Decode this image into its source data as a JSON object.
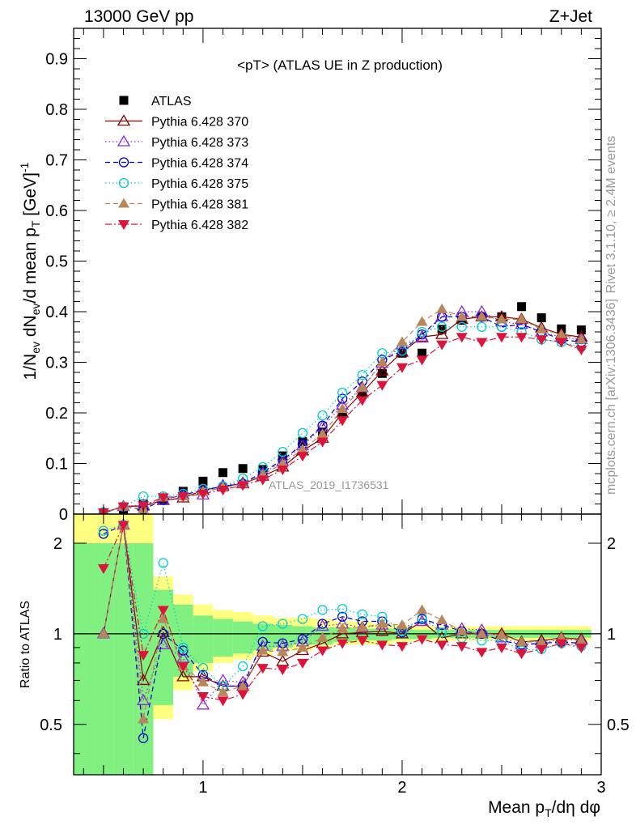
{
  "header": {
    "left": "13000 GeV pp",
    "right": "Z+Jet"
  },
  "side_text": {
    "top": "Rivet 3.1.10, ≥ 2.4M events",
    "bottom": "mcplots.cern.ch [arXiv:1306.3436]"
  },
  "watermark": "ATLAS_2019_I1736531",
  "colors": {
    "ATLAS": "#000000",
    "370": "#8b0000",
    "373": "#8a2be2",
    "374": "#0000cd",
    "375": "#00ced1",
    "381": "#b8865a",
    "382": "#dc143c",
    "band_yellow": "#ffff80",
    "band_green": "#80f080"
  },
  "chart_data": [
    {
      "type": "scatter",
      "title": "<pT> (ATLAS UE in Z production)",
      "ylabel": "1/N_ev dN_ev/d mean p_T [GeV]^-1",
      "xlabel": "",
      "xlim": [
        0.35,
        3.0
      ],
      "ylim": [
        0,
        0.96
      ],
      "yticks": [
        "0",
        "0.1",
        "0.2",
        "0.3",
        "0.4",
        "0.5",
        "0.6",
        "0.7",
        "0.8",
        "0.9"
      ],
      "x": [
        0.5,
        0.6,
        0.7,
        0.8,
        0.9,
        1.0,
        1.1,
        1.2,
        1.3,
        1.4,
        1.5,
        1.6,
        1.7,
        1.8,
        1.9,
        2.0,
        2.1,
        2.2,
        2.3,
        2.4,
        2.5,
        2.6,
        2.7,
        2.8,
        2.9
      ],
      "legend": [
        {
          "label": "ATLAS",
          "key": "ATLAS",
          "marker": "square-filled",
          "line": "none"
        },
        {
          "label": "Pythia 6.428 370",
          "key": "370",
          "marker": "triangle-open",
          "line": "solid"
        },
        {
          "label": "Pythia 6.428 373",
          "key": "373",
          "marker": "triangle-open",
          "line": "dotted"
        },
        {
          "label": "Pythia 6.428 374",
          "key": "374",
          "marker": "circle-open",
          "line": "dashed"
        },
        {
          "label": "Pythia 6.428 375",
          "key": "375",
          "marker": "circle-open",
          "line": "dotted"
        },
        {
          "label": "Pythia 6.428 381",
          "key": "381",
          "marker": "triangle-filled",
          "line": "dashed"
        },
        {
          "label": "Pythia 6.428 382",
          "key": "382",
          "marker": "triangle-down-filled",
          "line": "dashdot"
        }
      ],
      "series": [
        {
          "name": "ATLAS",
          "key": "ATLAS",
          "values": [
            0.002,
            0.007,
            0.02,
            0.03,
            0.045,
            0.065,
            0.082,
            0.09,
            0.088,
            0.115,
            0.143,
            0.162,
            0.2,
            0.237,
            0.278,
            0.318,
            0.318,
            0.365,
            0.383,
            0.39,
            0.39,
            0.41,
            0.388,
            0.366,
            0.364
          ]
        },
        {
          "name": "Pythia 6.428 370",
          "key": "370",
          "values": [
            0.002,
            0.015,
            0.016,
            0.027,
            0.032,
            0.047,
            0.055,
            0.06,
            0.075,
            0.093,
            0.125,
            0.15,
            0.2,
            0.24,
            0.283,
            0.32,
            0.35,
            0.355,
            0.385,
            0.39,
            0.39,
            0.385,
            0.368,
            0.355,
            0.35
          ]
        },
        {
          "name": "Pythia 6.428 373",
          "key": "373",
          "values": [
            0.002,
            0.015,
            0.018,
            0.028,
            0.038,
            0.038,
            0.057,
            0.062,
            0.08,
            0.104,
            0.135,
            0.172,
            0.215,
            0.25,
            0.298,
            0.335,
            0.348,
            0.39,
            0.4,
            0.4,
            0.38,
            0.375,
            0.36,
            0.35,
            0.345
          ]
        },
        {
          "name": "Pythia 6.428 374",
          "key": "374",
          "values": [
            0.002,
            0.015,
            0.009,
            0.028,
            0.038,
            0.047,
            0.055,
            0.06,
            0.083,
            0.107,
            0.138,
            0.175,
            0.228,
            0.262,
            0.305,
            0.322,
            0.355,
            0.39,
            0.39,
            0.39,
            0.37,
            0.375,
            0.36,
            0.345,
            0.34
          ]
        },
        {
          "name": "Pythia 6.428 375",
          "key": "375",
          "values": [
            0.004,
            0.015,
            0.035,
            0.035,
            0.04,
            0.05,
            0.055,
            0.07,
            0.093,
            0.123,
            0.16,
            0.195,
            0.24,
            0.275,
            0.318,
            0.323,
            0.36,
            0.37,
            0.37,
            0.37,
            0.37,
            0.36,
            0.345,
            0.34,
            0.33
          ]
        },
        {
          "name": "Pythia 6.428 381",
          "key": "381",
          "values": [
            0.002,
            0.015,
            0.01,
            0.033,
            0.035,
            0.045,
            0.052,
            0.06,
            0.078,
            0.1,
            0.128,
            0.158,
            0.208,
            0.25,
            0.3,
            0.34,
            0.38,
            0.405,
            0.39,
            0.39,
            0.385,
            0.385,
            0.365,
            0.355,
            0.345
          ]
        },
        {
          "name": "Pythia 6.428 382",
          "key": "382",
          "values": [
            0.0035,
            0.015,
            0.017,
            0.033,
            0.035,
            0.04,
            0.048,
            0.057,
            0.068,
            0.088,
            0.115,
            0.143,
            0.185,
            0.225,
            0.255,
            0.29,
            0.305,
            0.335,
            0.35,
            0.34,
            0.35,
            0.35,
            0.345,
            0.34,
            0.325
          ]
        }
      ]
    },
    {
      "type": "scatter",
      "ylabel": "Ratio to ATLAS",
      "xlabel": "Mean p_T/dη dφ",
      "xlim": [
        0.35,
        3.0
      ],
      "ylim": [
        0.34,
        2.5
      ],
      "scale": "log",
      "yticks": [
        "0.5",
        "1",
        "2"
      ],
      "xticks": [
        "1",
        "2",
        "3"
      ],
      "x": [
        0.5,
        0.6,
        0.7,
        0.8,
        0.9,
        1.0,
        1.1,
        1.2,
        1.3,
        1.4,
        1.5,
        1.6,
        1.7,
        1.8,
        1.9,
        2.0,
        2.1,
        2.2,
        2.3,
        2.4,
        2.5,
        2.6,
        2.7,
        2.8,
        2.9
      ],
      "band_edges": [
        0.35,
        0.45,
        0.55,
        0.65,
        0.75,
        0.85,
        0.95,
        1.05,
        1.15,
        1.25,
        1.35,
        1.45,
        1.55,
        1.65,
        1.75,
        1.85,
        1.95,
        2.05,
        2.15,
        2.25,
        2.35,
        2.45,
        2.55,
        2.65,
        2.75,
        2.85,
        2.95
      ],
      "band_yellow": [
        [
          0.34,
          2.5
        ],
        [
          0.34,
          2.5
        ],
        [
          0.34,
          2.5
        ],
        [
          0.34,
          2.5
        ],
        [
          0.52,
          1.55
        ],
        [
          0.65,
          1.35
        ],
        [
          0.75,
          1.25
        ],
        [
          0.8,
          1.2
        ],
        [
          0.82,
          1.18
        ],
        [
          0.85,
          1.15
        ],
        [
          0.88,
          1.13
        ],
        [
          0.88,
          1.13
        ],
        [
          0.9,
          1.12
        ],
        [
          0.92,
          1.1
        ],
        [
          0.92,
          1.1
        ],
        [
          0.92,
          1.08
        ],
        [
          0.94,
          1.07
        ],
        [
          0.95,
          1.06
        ],
        [
          0.95,
          1.06
        ],
        [
          0.95,
          1.06
        ],
        [
          0.95,
          1.06
        ],
        [
          0.95,
          1.06
        ],
        [
          0.95,
          1.06
        ],
        [
          0.95,
          1.06
        ],
        [
          0.95,
          1.06
        ],
        [
          0.95,
          1.06
        ]
      ],
      "band_green": [
        [
          0.34,
          2.0
        ],
        [
          0.34,
          2.0
        ],
        [
          0.34,
          2.0
        ],
        [
          0.34,
          2.0
        ],
        [
          0.58,
          1.4
        ],
        [
          0.72,
          1.25
        ],
        [
          0.8,
          1.15
        ],
        [
          0.84,
          1.12
        ],
        [
          0.86,
          1.1
        ],
        [
          0.88,
          1.08
        ],
        [
          0.9,
          1.07
        ],
        [
          0.92,
          1.06
        ],
        [
          0.92,
          1.05
        ],
        [
          0.94,
          1.05
        ],
        [
          0.95,
          1.04
        ],
        [
          0.95,
          1.04
        ],
        [
          0.96,
          1.04
        ],
        [
          0.96,
          1.03
        ],
        [
          0.97,
          1.03
        ],
        [
          0.97,
          1.03
        ],
        [
          0.97,
          1.03
        ],
        [
          0.97,
          1.03
        ],
        [
          0.97,
          1.03
        ],
        [
          0.97,
          1.03
        ],
        [
          0.97,
          1.03
        ],
        [
          0.97,
          1.03
        ]
      ],
      "series": [
        {
          "key": "370",
          "values": [
            1.0,
            2.3,
            0.7,
            1.01,
            0.72,
            0.72,
            0.67,
            0.67,
            0.87,
            0.81,
            0.88,
            0.93,
            1.0,
            1.01,
            1.02,
            1.0,
            1.1,
            0.97,
            1.0,
            1.0,
            1.0,
            0.94,
            0.95,
            0.97,
            0.96
          ]
        },
        {
          "key": "373",
          "values": [
            1.0,
            2.3,
            0.6,
            0.92,
            0.83,
            0.58,
            0.7,
            0.69,
            0.91,
            0.91,
            0.94,
            1.06,
            1.08,
            1.05,
            1.07,
            1.05,
            1.1,
            1.07,
            1.04,
            1.03,
            0.97,
            0.92,
            0.93,
            0.96,
            0.95
          ]
        },
        {
          "key": "374",
          "values": [
            2.15,
            2.3,
            0.45,
            1.0,
            0.88,
            0.73,
            0.67,
            0.67,
            0.94,
            0.93,
            0.96,
            1.08,
            1.14,
            1.1,
            1.1,
            1.01,
            1.12,
            1.07,
            1.02,
            1.0,
            0.95,
            0.92,
            0.93,
            0.94,
            0.93
          ]
        },
        {
          "key": "375",
          "values": [
            2.2,
            2.3,
            1.0,
            1.72,
            0.9,
            0.77,
            0.67,
            0.78,
            1.06,
            1.08,
            1.12,
            1.2,
            1.21,
            1.16,
            1.14,
            1.02,
            1.13,
            1.01,
            0.97,
            0.95,
            0.95,
            0.88,
            0.89,
            0.93,
            0.91
          ]
        },
        {
          "key": "381",
          "values": [
            1.0,
            2.3,
            0.52,
            1.12,
            0.78,
            0.69,
            0.64,
            0.67,
            0.88,
            0.87,
            0.9,
            0.97,
            1.04,
            1.05,
            1.08,
            1.07,
            1.2,
            1.11,
            1.02,
            1.0,
            0.99,
            0.94,
            0.94,
            0.97,
            0.95
          ]
        },
        {
          "key": "382",
          "values": [
            1.65,
            2.3,
            0.85,
            1.2,
            0.78,
            0.62,
            0.6,
            0.63,
            0.77,
            0.76,
            0.8,
            0.88,
            0.93,
            0.95,
            0.92,
            0.91,
            0.96,
            0.92,
            0.91,
            0.87,
            0.9,
            0.86,
            0.89,
            0.93,
            0.9
          ]
        }
      ]
    }
  ]
}
